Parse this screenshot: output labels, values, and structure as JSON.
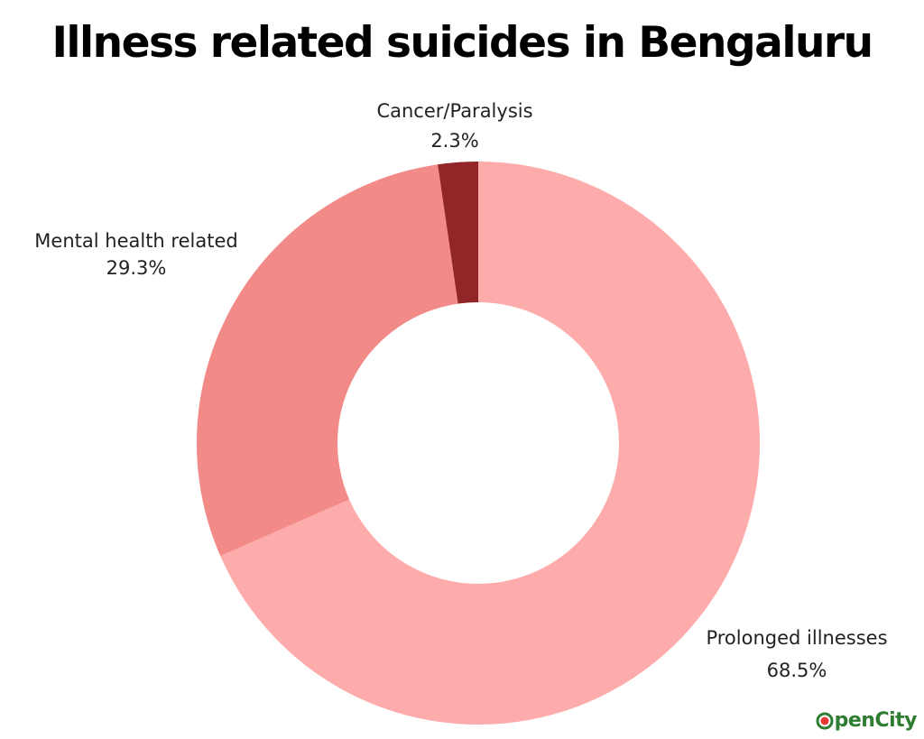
{
  "chart_data": {
    "type": "pie",
    "variant": "donut",
    "title": "Illness related suicides in Bengaluru",
    "slices": [
      {
        "label": "Prolonged illnesses",
        "value": 68.5,
        "value_label": "68.5%",
        "color": "#feabab"
      },
      {
        "label": "Mental health related",
        "value": 29.3,
        "value_label": "29.3%",
        "color": "#f28a87"
      },
      {
        "label": "Cancer/Paralysis",
        "value": 2.3,
        "value_label": "2.3%",
        "color": "#922527"
      }
    ],
    "start": "12 o'clock",
    "direction": "clockwise",
    "legend": "none (labels beside slices)"
  },
  "branding": {
    "logo_text_prefix": "O",
    "logo_text_open": "pen",
    "logo_text_city": "City",
    "logo_colors": {
      "green": "#2e7d32",
      "red": "#e53935"
    }
  }
}
